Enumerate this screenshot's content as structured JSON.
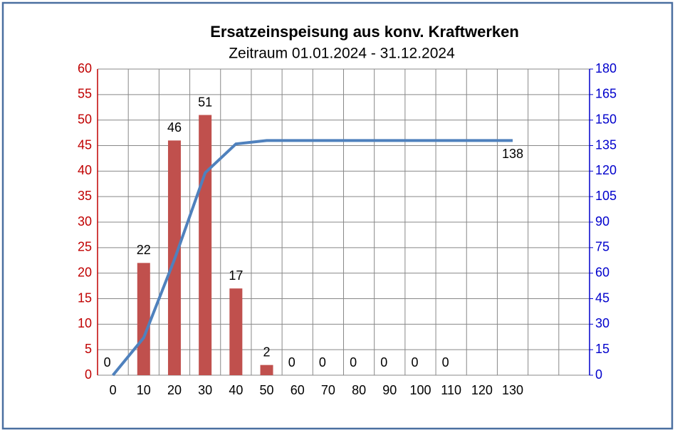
{
  "chart_data": {
    "type": "bar",
    "title": "Ersatzeinspeisung aus konv. Kraftwerken",
    "subtitle": "Zeitraum 01.01.2024 - 31.12.2024",
    "categories": [
      "0",
      "10",
      "20",
      "30",
      "40",
      "50",
      "60",
      "70",
      "80",
      "90",
      "100",
      "110",
      "120",
      "130"
    ],
    "series": [
      {
        "type": "bar",
        "color": "#c0504d",
        "axis": "y",
        "values": [
          0,
          22,
          46,
          51,
          17,
          2,
          0,
          0,
          0,
          0,
          0,
          0,
          null,
          null
        ]
      },
      {
        "type": "line",
        "color": "#4f81bd",
        "axis": "y2",
        "values": [
          0,
          22,
          68,
          119,
          136,
          138,
          138,
          138,
          138,
          138,
          138,
          138,
          138,
          138
        ],
        "value_labels": [
          null,
          null,
          null,
          null,
          null,
          null,
          null,
          null,
          null,
          null,
          null,
          null,
          null,
          "138"
        ]
      }
    ],
    "ylim": [
      0,
      60
    ],
    "yticks": [
      0,
      5,
      10,
      15,
      20,
      25,
      30,
      35,
      40,
      45,
      50,
      55,
      60
    ],
    "y2lim": [
      0,
      180
    ],
    "y2ticks": [
      0,
      15,
      30,
      45,
      60,
      75,
      90,
      105,
      120,
      135,
      150,
      165,
      180
    ],
    "ycolor": "#c00000",
    "y2color": "#0000cc",
    "grid": true
  }
}
